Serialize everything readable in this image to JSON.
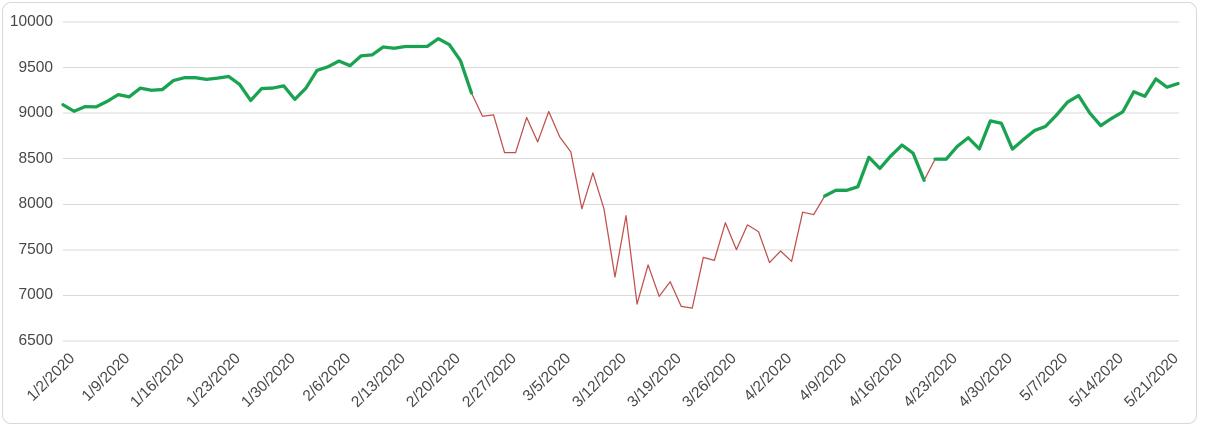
{
  "chart": {
    "background_color": "#FFFFFF",
    "border_color": "#D9D9D9",
    "gridline_color": "#D9D9D9",
    "axis_label_color": "#474747",
    "uptrend_color": "#19A351",
    "downtrend_color": "#C0504D"
  },
  "chart_data": {
    "type": "line",
    "title": "",
    "xlabel": "",
    "ylabel": "",
    "grid": true,
    "legend": false,
    "ylim": [
      6500,
      10000
    ],
    "ytick_interval": 500,
    "y_tick_labels": [
      "10000",
      "9500",
      "9000",
      "8500",
      "8000",
      "7500",
      "7000",
      "6500"
    ],
    "x_tick_step": 5,
    "x_tick_labels": [
      "1/2/2020",
      "1/9/2020",
      "1/16/2020",
      "1/23/2020",
      "1/30/2020",
      "2/6/2020",
      "2/13/2020",
      "2/20/2020",
      "2/27/2020",
      "3/5/2020",
      "3/12/2020",
      "3/19/2020",
      "3/26/2020",
      "4/2/2020",
      "4/9/2020",
      "4/16/2020",
      "4/23/2020",
      "4/30/2020",
      "5/7/2020",
      "5/14/2020",
      "5/21/2020"
    ],
    "dates": [
      "1/2/2020",
      "1/3/2020",
      "1/6/2020",
      "1/7/2020",
      "1/8/2020",
      "1/9/2020",
      "1/10/2020",
      "1/13/2020",
      "1/14/2020",
      "1/15/2020",
      "1/16/2020",
      "1/17/2020",
      "1/20/2020",
      "1/21/2020",
      "1/22/2020",
      "1/23/2020",
      "1/24/2020",
      "1/27/2020",
      "1/28/2020",
      "1/29/2020",
      "1/30/2020",
      "1/31/2020",
      "2/3/2020",
      "2/4/2020",
      "2/5/2020",
      "2/6/2020",
      "2/7/2020",
      "2/10/2020",
      "2/11/2020",
      "2/12/2020",
      "2/13/2020",
      "2/14/2020",
      "2/17/2020",
      "2/18/2020",
      "2/19/2020",
      "2/20/2020",
      "2/21/2020",
      "2/24/2020",
      "2/25/2020",
      "2/26/2020",
      "2/27/2020",
      "2/28/2020",
      "3/2/2020",
      "3/3/2020",
      "3/4/2020",
      "3/5/2020",
      "3/6/2020",
      "3/9/2020",
      "3/10/2020",
      "3/11/2020",
      "3/12/2020",
      "3/13/2020",
      "3/16/2020",
      "3/17/2020",
      "3/18/2020",
      "3/19/2020",
      "3/20/2020",
      "3/23/2020",
      "3/24/2020",
      "3/25/2020",
      "3/26/2020",
      "3/27/2020",
      "3/30/2020",
      "3/31/2020",
      "4/1/2020",
      "4/2/2020",
      "4/3/2020",
      "4/6/2020",
      "4/7/2020",
      "4/8/2020",
      "4/9/2020",
      "4/10/2020",
      "4/13/2020",
      "4/14/2020",
      "4/15/2020",
      "4/16/2020",
      "4/17/2020",
      "4/20/2020",
      "4/21/2020",
      "4/22/2020",
      "4/23/2020",
      "4/24/2020",
      "4/27/2020",
      "4/28/2020",
      "4/29/2020",
      "4/30/2020",
      "5/1/2020",
      "5/4/2020",
      "5/5/2020",
      "5/6/2020",
      "5/7/2020",
      "5/8/2020",
      "5/11/2020",
      "5/12/2020",
      "5/13/2020",
      "5/14/2020",
      "5/15/2020",
      "5/18/2020",
      "5/19/2020",
      "5/20/2020",
      "5/21/2020",
      "5/22/2020"
    ],
    "values": [
      9092.19,
      9020.77,
      9071.47,
      9068.58,
      9129.24,
      9203.43,
      9178.86,
      9273.93,
      9251.33,
      9258.7,
      9357.13,
      9388.94,
      9388.94,
      9370.81,
      9383.77,
      9402.48,
      9314.91,
      9139.31,
      9269.68,
      9275.16,
      9298.93,
      9150.94,
      9273.4,
      9467.97,
      9508.68,
      9572.15,
      9520.51,
      9628.39,
      9638.94,
      9725.96,
      9711.97,
      9731.18,
      9731.18,
      9732.74,
      9817.18,
      9750.97,
      9576.59,
      9221.28,
      8965.61,
      8980.78,
      8566.48,
      8567.37,
      8952.17,
      8684.09,
      9018.09,
      8738.6,
      8575.62,
      7950.68,
      8344.25,
      7952.05,
      7201.8,
      7874.88,
      6904.59,
      7334.78,
      6989.84,
      7150.58,
      6879.52,
      6860.67,
      7417.86,
      7384.3,
      7797.54,
      7502.38,
      7774.15,
      7700.1,
      7360.58,
      7487.31,
      7373.08,
      7913.24,
      7887.26,
      8090.9,
      8153.58,
      8153.58,
      8192.42,
      8515.74,
      8393.18,
      8532.36,
      8650.14,
      8560.73,
      8263.23,
      8495.38,
      8494.75,
      8634.52,
      8730.16,
      8607.73,
      8914.71,
      8889.55,
      8604.95,
      8710.72,
      8809.12,
      8854.39,
      8979.66,
      9121.32,
      9192.34,
      9002.55,
      8863.17,
      8943.72,
      9014.56,
      9234.83,
      9185.1,
      9375.78,
      9284.88,
      9324.59
    ],
    "segments": [
      {
        "color": "green",
        "from": 0,
        "to": 37
      },
      {
        "color": "red",
        "from": 37,
        "to": 69
      },
      {
        "color": "green",
        "from": 69,
        "to": 78
      },
      {
        "color": "red",
        "from": 78,
        "to": 79
      },
      {
        "color": "green",
        "from": 79,
        "to": 101
      }
    ]
  }
}
